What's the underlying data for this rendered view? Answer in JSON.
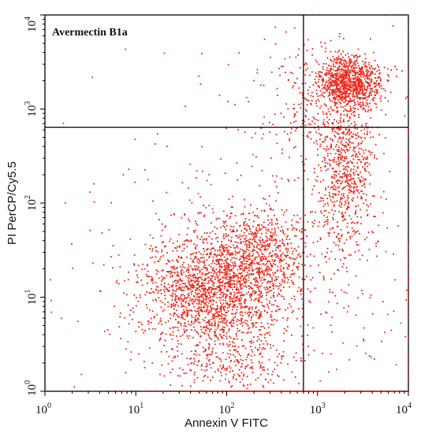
{
  "chart_data": {
    "type": "scatter",
    "title": "Avermectin B1a",
    "xlabel": "Annexin V FITC",
    "ylabel": "PI PerCP/Cy5.5",
    "x_scale": "log",
    "y_scale": "log",
    "xlim": [
      1,
      10000
    ],
    "ylim": [
      1,
      10000
    ],
    "x_ticks": [
      {
        "base": "10",
        "exp": "0",
        "value": 1
      },
      {
        "base": "10",
        "exp": "1",
        "value": 10
      },
      {
        "base": "10",
        "exp": "2",
        "value": 100
      },
      {
        "base": "10",
        "exp": "3",
        "value": 1000
      },
      {
        "base": "10",
        "exp": "4",
        "value": 10000
      }
    ],
    "y_ticks": [
      {
        "base": "10",
        "exp": "0",
        "value": 1
      },
      {
        "base": "10",
        "exp": "1",
        "value": 10
      },
      {
        "base": "10",
        "exp": "2",
        "value": 100
      },
      {
        "base": "10",
        "exp": "3",
        "value": 1000
      },
      {
        "base": "10",
        "exp": "4",
        "value": 10000
      }
    ],
    "quadrant_gates": {
      "x": 700,
      "y": 640
    },
    "point_color": "#e8281c",
    "grid": false,
    "legend": "none",
    "clusters": [
      {
        "x_center": 70,
        "y_center": 11,
        "count": 1700,
        "x_spread_decades": 0.42,
        "y_spread_decades": 0.3
      },
      {
        "x_center": 220,
        "y_center": 28,
        "count": 750,
        "x_spread_decades": 0.3,
        "y_spread_decades": 0.25
      },
      {
        "x_center": 2300,
        "y_center": 1900,
        "count": 900,
        "x_spread_decades": 0.18,
        "y_spread_decades": 0.13
      },
      {
        "x_center": 2000,
        "y_center": 220,
        "count": 700,
        "x_spread_decades": 0.17,
        "y_spread_decades": 0.45
      },
      {
        "x_center": 1100,
        "y_center": 1200,
        "count": 250,
        "x_spread_decades": 0.35,
        "y_spread_decades": 0.35
      },
      {
        "x_center": 700,
        "y_center": 1,
        "count": 350,
        "x_spread_decades": 0.65,
        "y_spread_decades": 0.0
      },
      {
        "x_center": 120,
        "y_center": 2,
        "count": 250,
        "x_spread_decades": 0.35,
        "y_spread_decades": 0.15
      },
      {
        "x_center": 400,
        "y_center": 20,
        "count": 400,
        "x_spread_decades": 1.2,
        "y_spread_decades": 1.2
      }
    ]
  }
}
